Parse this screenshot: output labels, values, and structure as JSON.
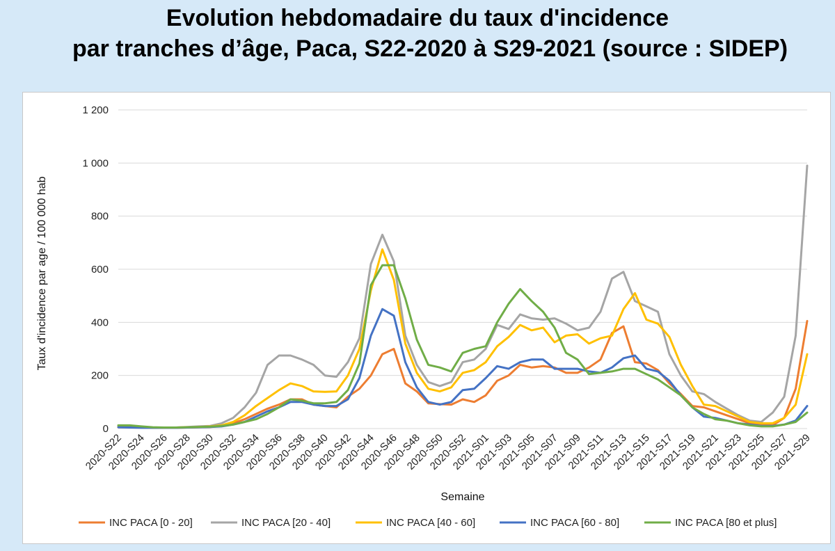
{
  "title": {
    "line1": "Evolution hebdomadaire du taux d'incidence",
    "line2": "par tranches d’âge, Paca, S22-2020 à S29-2021 (source : SIDEP)"
  },
  "chart_data": {
    "type": "line",
    "xlabel": "Semaine",
    "ylabel": "Taux d'incidence par age / 100 000 hab",
    "ylim": [
      0,
      1200
    ],
    "y_ticks": [
      0,
      200,
      400,
      600,
      800,
      1000,
      1200
    ],
    "y_tick_labels": [
      "0",
      "200",
      "400",
      "600",
      "800",
      "1 000",
      "1 200"
    ],
    "grid": true,
    "legend_position": "bottom",
    "x": [
      "2020-S22",
      "2020-S23",
      "2020-S24",
      "2020-S25",
      "2020-S26",
      "2020-S27",
      "2020-S28",
      "2020-S29",
      "2020-S30",
      "2020-S31",
      "2020-S32",
      "2020-S33",
      "2020-S34",
      "2020-S35",
      "2020-S36",
      "2020-S37",
      "2020-S38",
      "2020-S39",
      "2020-S40",
      "2020-S41",
      "2020-S42",
      "2020-S43",
      "2020-S44",
      "2020-S45",
      "2020-S46",
      "2020-S47",
      "2020-S48",
      "2020-S49",
      "2020-S50",
      "2020-S51",
      "2020-S52",
      "2020-S53",
      "2021-S01",
      "2021-S02",
      "2021-S03",
      "2021-S04",
      "2021-S05",
      "2021-S06",
      "2021-S07",
      "2021-S08",
      "2021-S09",
      "2021-S10",
      "2021-S11",
      "2021-S12",
      "2021-S13",
      "2021-S14",
      "2021-S15",
      "2021-S16",
      "2021-S17",
      "2021-S18",
      "2021-S19",
      "2021-S20",
      "2021-S21",
      "2021-S22",
      "2021-S23",
      "2021-S24",
      "2021-S25",
      "2021-S26",
      "2021-S27",
      "2021-S28",
      "2021-S29"
    ],
    "x_tick_labels": [
      "2020-S22",
      "2020-S24",
      "2020-S26",
      "2020-S28",
      "2020-S30",
      "2020-S32",
      "2020-S34",
      "2020-S36",
      "2020-S38",
      "2020-S40",
      "2020-S42",
      "2020-S44",
      "2020-S46",
      "2020-S48",
      "2020-S50",
      "2020-S52",
      "2021-S01",
      "2021-S03",
      "2021-S05",
      "2021-S07",
      "2021-S09",
      "2021-S11",
      "2021-S13",
      "2021-S15",
      "2021-S17",
      "2021-S19",
      "2021-S21",
      "2021-S23",
      "2021-S25",
      "2021-S27",
      "2021-S29"
    ],
    "series": [
      {
        "name": "INC PACA [0 - 20]",
        "color": "#ed7d31",
        "values": [
          5,
          5,
          4,
          3,
          3,
          3,
          4,
          5,
          6,
          10,
          20,
          35,
          55,
          75,
          90,
          110,
          110,
          90,
          85,
          80,
          120,
          150,
          200,
          280,
          300,
          170,
          140,
          95,
          92,
          90,
          110,
          100,
          125,
          180,
          200,
          240,
          230,
          235,
          230,
          210,
          210,
          230,
          260,
          360,
          385,
          250,
          245,
          220,
          170,
          130,
          85,
          80,
          65,
          50,
          35,
          20,
          15,
          12,
          40,
          150,
          405
        ]
      },
      {
        "name": "INC PACA [20 - 40]",
        "color": "#a5a5a5",
        "values": [
          8,
          7,
          5,
          4,
          4,
          4,
          6,
          8,
          10,
          20,
          40,
          80,
          135,
          240,
          275,
          275,
          260,
          240,
          200,
          195,
          250,
          340,
          620,
          730,
          630,
          350,
          240,
          175,
          160,
          175,
          250,
          260,
          300,
          390,
          375,
          430,
          415,
          410,
          415,
          395,
          370,
          380,
          440,
          565,
          590,
          480,
          460,
          440,
          280,
          200,
          140,
          130,
          100,
          75,
          50,
          30,
          25,
          60,
          120,
          350,
          990
        ]
      },
      {
        "name": "INC PACA [40 - 60]",
        "color": "#ffc000",
        "values": [
          6,
          6,
          5,
          4,
          4,
          4,
          5,
          6,
          8,
          12,
          25,
          50,
          85,
          115,
          145,
          170,
          160,
          140,
          138,
          140,
          200,
          300,
          520,
          675,
          560,
          320,
          210,
          150,
          140,
          155,
          210,
          220,
          250,
          310,
          345,
          390,
          370,
          380,
          325,
          350,
          355,
          320,
          340,
          350,
          450,
          510,
          410,
          395,
          345,
          240,
          160,
          90,
          85,
          65,
          45,
          25,
          20,
          20,
          40,
          90,
          280
        ]
      },
      {
        "name": "INC PACA [60 - 80]",
        "color": "#4472c4",
        "values": [
          5,
          4,
          3,
          3,
          3,
          3,
          4,
          5,
          6,
          8,
          15,
          25,
          45,
          65,
          80,
          100,
          100,
          90,
          85,
          85,
          110,
          190,
          350,
          450,
          425,
          250,
          155,
          100,
          90,
          100,
          145,
          150,
          190,
          235,
          225,
          250,
          260,
          260,
          225,
          225,
          225,
          215,
          210,
          230,
          265,
          275,
          225,
          215,
          180,
          125,
          80,
          45,
          40,
          30,
          20,
          15,
          10,
          10,
          15,
          30,
          85
        ]
      },
      {
        "name": "INC PACA [80 et plus]",
        "color": "#70ad47",
        "values": [
          12,
          12,
          8,
          5,
          4,
          4,
          5,
          6,
          7,
          10,
          15,
          25,
          35,
          55,
          80,
          110,
          105,
          95,
          95,
          100,
          145,
          245,
          540,
          615,
          615,
          490,
          335,
          240,
          230,
          215,
          285,
          300,
          310,
          400,
          470,
          525,
          480,
          440,
          380,
          285,
          260,
          205,
          210,
          215,
          225,
          225,
          205,
          185,
          155,
          125,
          80,
          55,
          35,
          30,
          20,
          12,
          8,
          8,
          15,
          25,
          60
        ]
      }
    ]
  }
}
